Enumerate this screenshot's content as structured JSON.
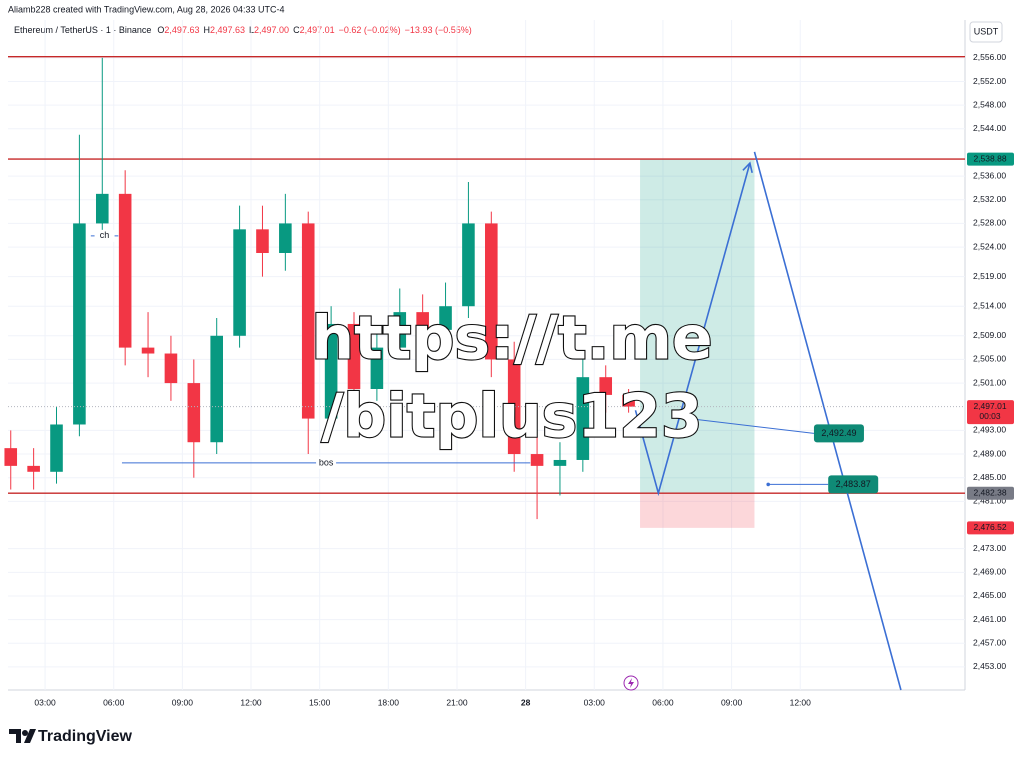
{
  "header": "Aliamb228 created with TradingView.com, Aug 28, 2026 04:33 UTC-4",
  "legend": {
    "symbol": "Ethereum / TetherUS · 1 · Binance",
    "ohlc": [
      {
        "k": "O",
        "v": "2,497.63"
      },
      {
        "k": "H",
        "v": "2,497.63"
      },
      {
        "k": "L",
        "v": "2,497.00"
      },
      {
        "k": "C",
        "v": "2,497.01"
      }
    ],
    "change": "−0.62 (−0.02%)",
    "change2": "−13.93 (−0.55%)"
  },
  "currency": "USDT",
  "watermark": [
    "https://t.me",
    "/bitplus123"
  ],
  "logo": "TradingView",
  "chart_data": {
    "type": "candlestick",
    "up_color": "#089981",
    "down_color": "#f23645",
    "x": [
      1.5,
      2.5,
      3.5,
      4.5,
      5.5,
      6.5,
      7.5,
      8.5,
      9.5,
      10.5,
      11.5,
      12.5,
      13.5,
      14.5,
      15.5,
      16.5,
      17.5,
      18.5,
      19.5,
      20.5,
      21.5,
      22.5,
      23.5,
      24.5,
      25.5,
      26.5,
      27.5,
      28.5
    ],
    "open": [
      2490,
      2487,
      2486,
      2494,
      2528,
      2533,
      2507,
      2506,
      2501,
      2491,
      2509,
      2527,
      2523,
      2528,
      2495,
      2511,
      2500,
      2507,
      2513,
      2510,
      2514,
      2528,
      2505,
      2489,
      2487,
      2488,
      2502,
      2499
    ],
    "high": [
      2493,
      2490,
      2497,
      2543,
      2556,
      2537,
      2513,
      2509,
      2505,
      2512,
      2531,
      2531,
      2533,
      2530,
      2514,
      2513,
      2510,
      2517,
      2516,
      2518,
      2535,
      2530,
      2508,
      2492,
      2491,
      2505,
      2504,
      2500
    ],
    "low": [
      2483,
      2483,
      2484,
      2492,
      2525,
      2504,
      2502,
      2498,
      2485,
      2489,
      2507,
      2519,
      2520,
      2489,
      2493,
      2497,
      2498,
      2505,
      2506,
      2508,
      2512,
      2502,
      2486,
      2478,
      2482,
      2486,
      2496,
      2496
    ],
    "close": [
      2487,
      2486,
      2494,
      2528,
      2533,
      2507,
      2506,
      2501,
      2491,
      2509,
      2527,
      2523,
      2528,
      2495,
      2511,
      2500,
      2507,
      2513,
      2510,
      2514,
      2528,
      2505,
      2489,
      2487,
      2488,
      2502,
      2499,
      2497.01
    ],
    "xlim": [
      1.38,
      43.2
    ],
    "ylim": [
      2449.1,
      2562.4
    ],
    "xticks": [
      {
        "value": 3,
        "label": "03:00"
      },
      {
        "value": 6,
        "label": "06:00"
      },
      {
        "value": 9,
        "label": "09:00"
      },
      {
        "value": 12,
        "label": "12:00"
      },
      {
        "value": 15,
        "label": "15:00"
      },
      {
        "value": 18,
        "label": "18:00"
      },
      {
        "value": 21,
        "label": "21:00"
      },
      {
        "value": 24,
        "label": "28"
      },
      {
        "value": 27,
        "label": "03:00"
      },
      {
        "value": 30,
        "label": "06:00"
      },
      {
        "value": 33,
        "label": "09:00"
      },
      {
        "value": 36,
        "label": "12:00"
      }
    ],
    "yticks": [
      {
        "value": 2556,
        "label": "2,556.00"
      },
      {
        "value": 2552,
        "label": "2,552.00"
      },
      {
        "value": 2548,
        "label": "2,548.00"
      },
      {
        "value": 2544,
        "label": "2,544.00"
      },
      {
        "value": 2536,
        "label": "2,536.00"
      },
      {
        "value": 2532,
        "label": "2,532.00"
      },
      {
        "value": 2528,
        "label": "2,528.00"
      },
      {
        "value": 2524,
        "label": "2,524.00"
      },
      {
        "value": 2519,
        "label": "2,519.00"
      },
      {
        "value": 2514,
        "label": "2,514.00"
      },
      {
        "value": 2509,
        "label": "2,509.00"
      },
      {
        "value": 2505,
        "label": "2,505.00"
      },
      {
        "value": 2501,
        "label": "2,501.00"
      },
      {
        "value": 2493,
        "label": "2,493.00"
      },
      {
        "value": 2489,
        "label": "2,489.00"
      },
      {
        "value": 2485,
        "label": "2,485.00"
      },
      {
        "value": 2481,
        "label": "2,481.00"
      },
      {
        "value": 2473,
        "label": "2,473.00"
      },
      {
        "value": 2469,
        "label": "2,469.00"
      },
      {
        "value": 2465,
        "label": "2,465.00"
      },
      {
        "value": 2461,
        "label": "2,461.00"
      },
      {
        "value": 2457,
        "label": "2,457.00"
      },
      {
        "value": 2453,
        "label": "2,453.00"
      }
    ],
    "grid": true,
    "levels": [
      {
        "value": 2556.2,
        "color": "#c62828"
      },
      {
        "value": 2538.88,
        "color": "#c62828"
      },
      {
        "value": 2482.38,
        "color": "#c62828"
      }
    ],
    "position": {
      "x_start": 29.0,
      "x_end": 34.0,
      "target": 2538.88,
      "entry": 2482.38,
      "stop": 2476.52
    },
    "paths": [
      {
        "x": [
          28.8,
          29.8,
          33.8
        ],
        "y": [
          2496.4,
          2482.4,
          2538.2
        ]
      },
      {
        "x": [
          34.0,
          40.4
        ],
        "y": [
          2540.1,
          2449.1
        ]
      }
    ],
    "path_color": "#3b6fd4",
    "callouts": [
      {
        "x": 30.7,
        "value": 2492.49,
        "label": "2,492.49"
      },
      {
        "x": 34.6,
        "value": 2483.87,
        "label": "2,483.87"
      }
    ],
    "notes": [
      {
        "text": "bos",
        "value": 2487.5,
        "x_start": 6.36,
        "x_end": 24.2
      },
      {
        "text": "ch",
        "value": 2525.9,
        "x_start": 5.0,
        "x_end": 6.2
      }
    ],
    "price_labels": [
      {
        "value": 2538.88,
        "label": "2,538.88",
        "color": "#089981"
      },
      {
        "value": 2497.01,
        "label": "2,497.01",
        "sub": "00:03",
        "color": "#f23645"
      },
      {
        "value": 2482.38,
        "label": "2,482.38",
        "color": "#787b86"
      },
      {
        "value": 2476.52,
        "label": "2,476.52",
        "color": "#f23645"
      }
    ]
  }
}
